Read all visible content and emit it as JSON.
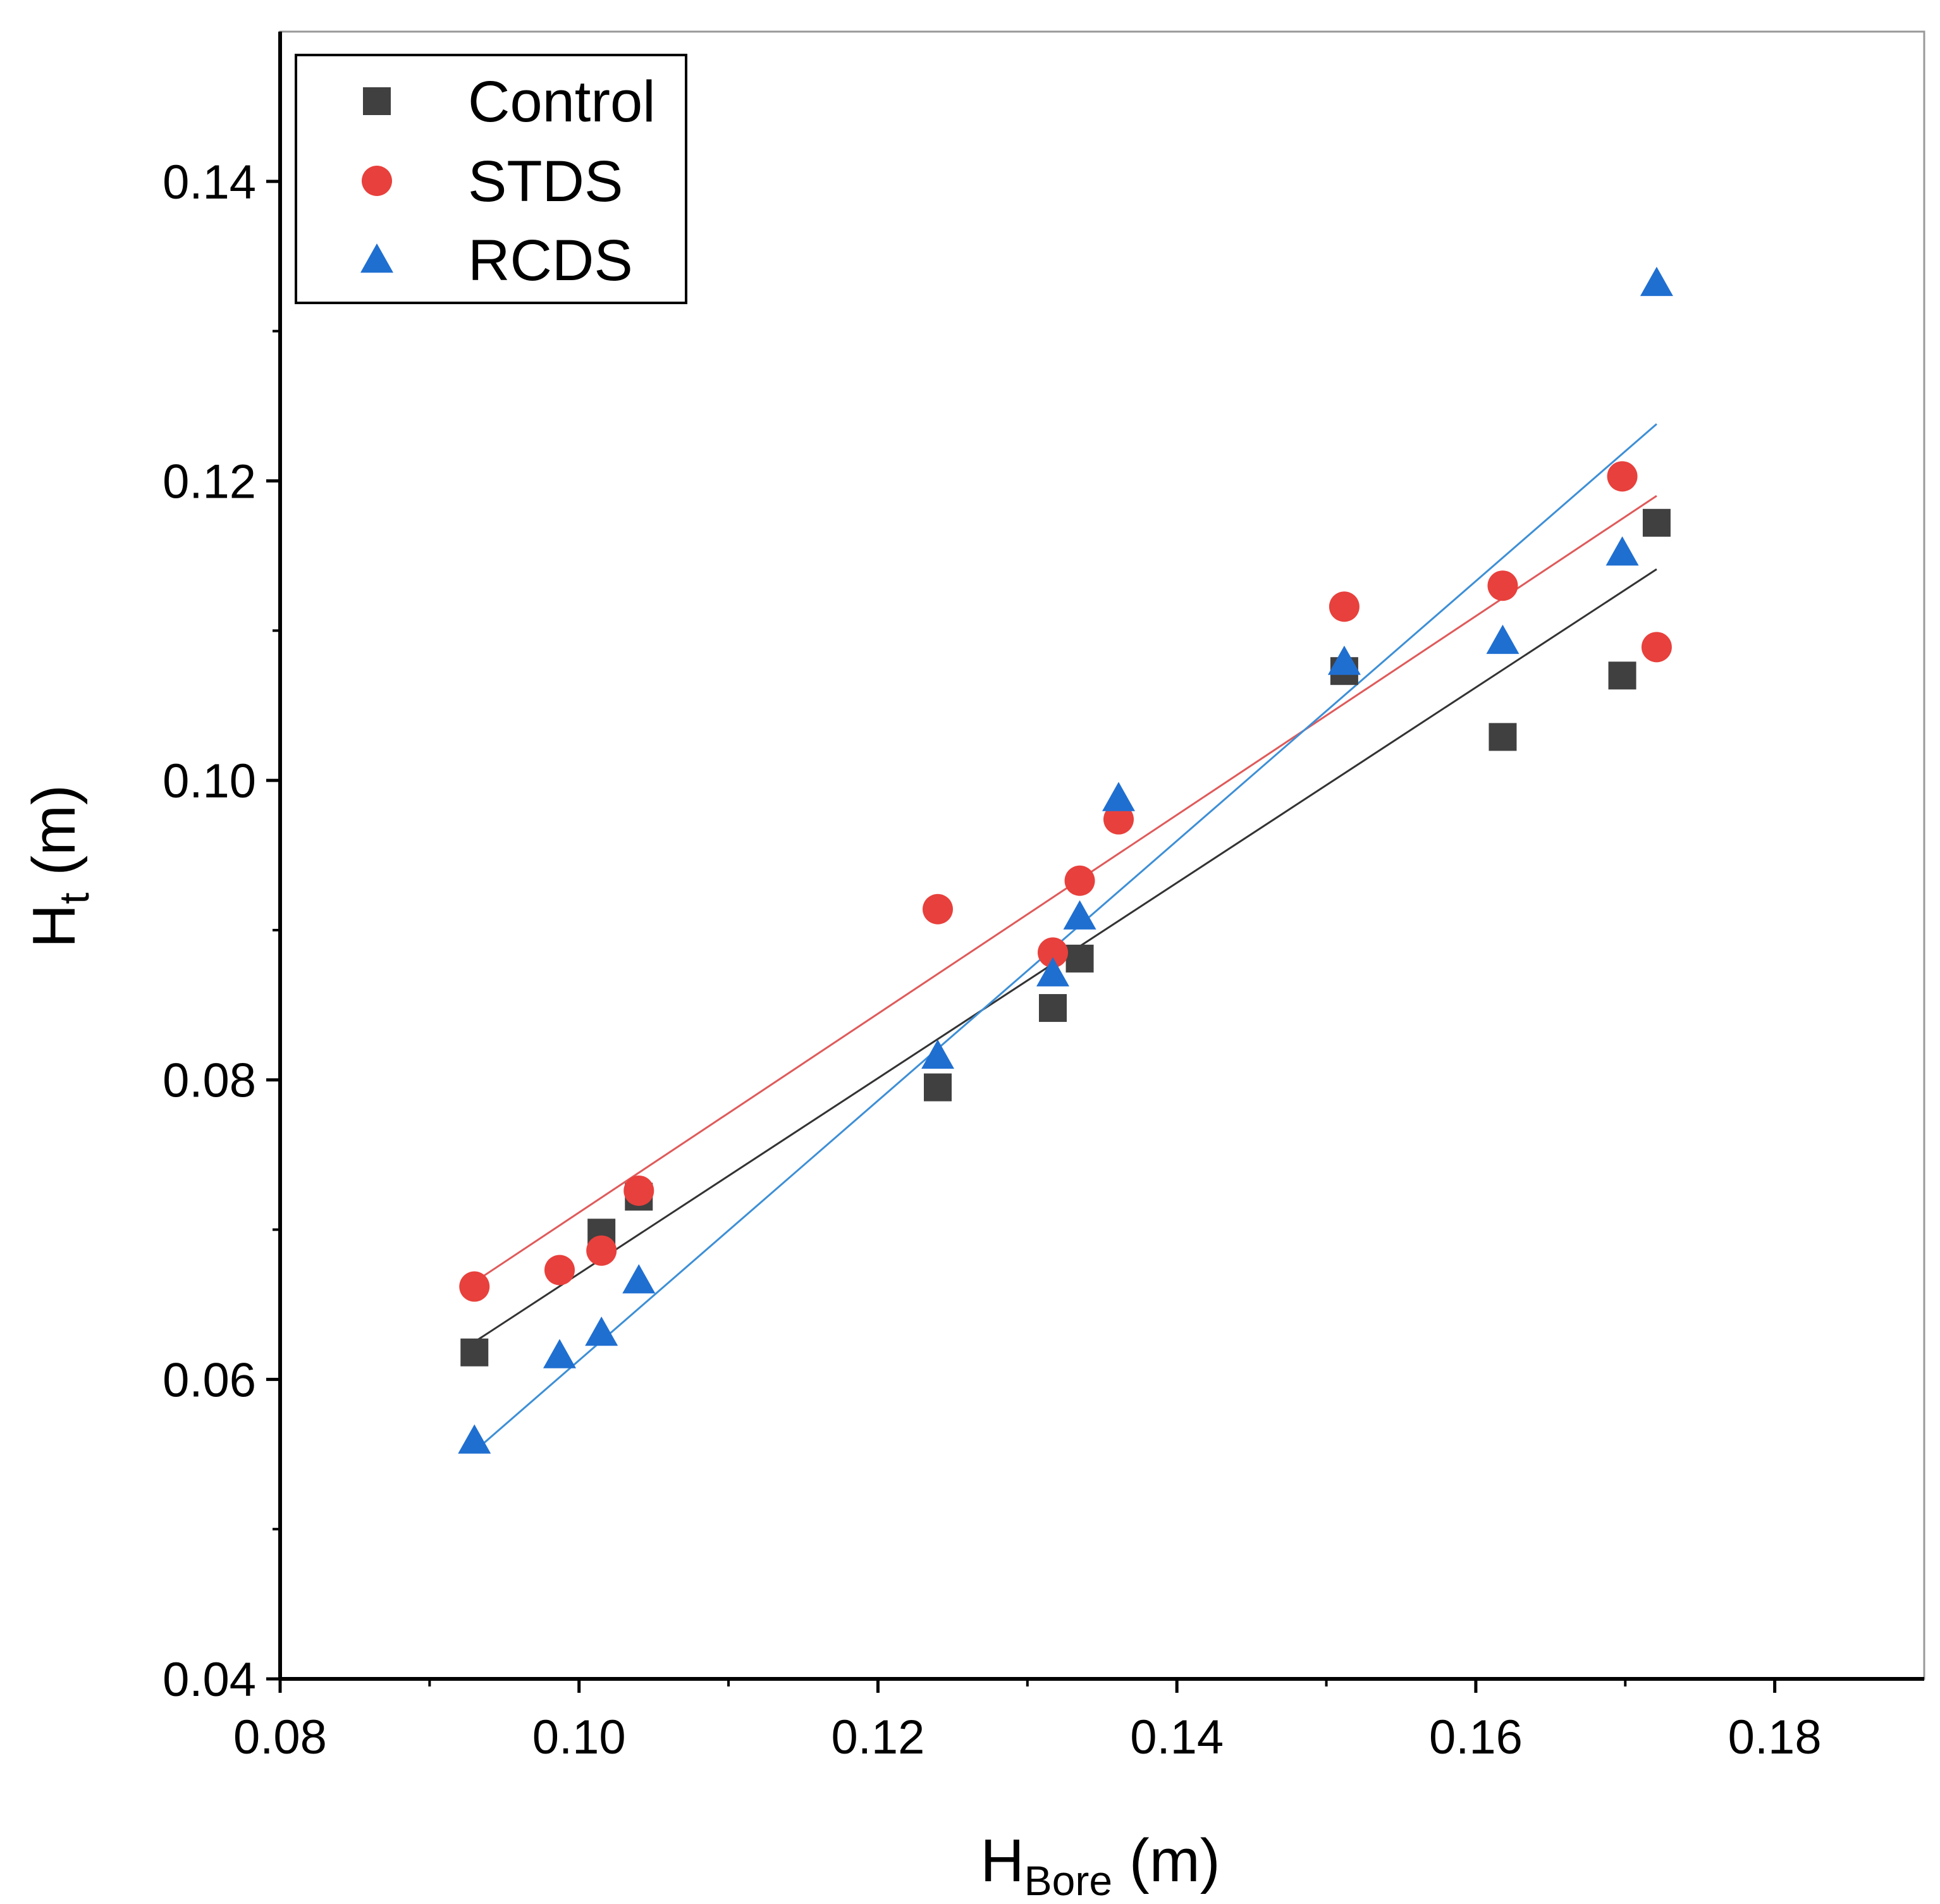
{
  "chart_data": {
    "type": "scatter",
    "x_axis": {
      "label_main": "H",
      "label_sub": "Bore",
      "label_unit": " (m)",
      "range": [
        0.08,
        0.19
      ],
      "ticks": [
        0.08,
        0.1,
        0.12,
        0.14,
        0.16,
        0.18
      ],
      "tick_labels": [
        "0.08",
        "0.10",
        "0.12",
        "0.14",
        "0.16",
        "0.18"
      ]
    },
    "y_axis": {
      "label_main": "H",
      "label_sub": "t",
      "label_unit": " (m)",
      "range": [
        0.04,
        0.15
      ],
      "ticks": [
        0.04,
        0.06,
        0.08,
        0.1,
        0.12,
        0.14
      ],
      "tick_labels": [
        "0.04",
        "0.06",
        "0.08",
        "0.10",
        "0.12",
        "0.14"
      ]
    },
    "legend_position": "top-left",
    "series": [
      {
        "name": "Control",
        "marker": "square",
        "color": "#404040",
        "line_color": "#333333",
        "points": [
          [
            0.093,
            0.0618
          ],
          [
            0.1015,
            0.0698
          ],
          [
            0.104,
            0.0722
          ],
          [
            0.124,
            0.0795
          ],
          [
            0.1317,
            0.0848
          ],
          [
            0.1335,
            0.0881
          ],
          [
            0.1512,
            0.1073
          ],
          [
            0.1618,
            0.1029
          ],
          [
            0.1698,
            0.107
          ],
          [
            0.1721,
            0.1172
          ]
        ],
        "fit": [
          [
            0.093,
            0.0625
          ],
          [
            0.1721,
            0.1141
          ]
        ]
      },
      {
        "name": "STDS",
        "marker": "circle",
        "color": "#e8403c",
        "line_color": "#e05a5a",
        "points": [
          [
            0.093,
            0.0662
          ],
          [
            0.0987,
            0.0673
          ],
          [
            0.1015,
            0.0686
          ],
          [
            0.104,
            0.0726
          ],
          [
            0.124,
            0.0914
          ],
          [
            0.1317,
            0.0885
          ],
          [
            0.1335,
            0.0933
          ],
          [
            0.1361,
            0.0974
          ],
          [
            0.1512,
            0.1116
          ],
          [
            0.1618,
            0.113
          ],
          [
            0.1698,
            0.1203
          ],
          [
            0.1721,
            0.1089
          ]
        ],
        "fit": [
          [
            0.093,
            0.0665
          ],
          [
            0.1721,
            0.119
          ]
        ]
      },
      {
        "name": "RCDS",
        "marker": "triangle",
        "color": "#1f6fd1",
        "line_color": "#3d8fd6",
        "points": [
          [
            0.093,
            0.0559
          ],
          [
            0.0987,
            0.0616
          ],
          [
            0.1015,
            0.0631
          ],
          [
            0.104,
            0.0666
          ],
          [
            0.124,
            0.0816
          ],
          [
            0.1317,
            0.0871
          ],
          [
            0.1335,
            0.0909
          ],
          [
            0.1361,
            0.0988
          ],
          [
            0.1512,
            0.1079
          ],
          [
            0.1618,
            0.1093
          ],
          [
            0.1698,
            0.1152
          ],
          [
            0.1721,
            0.1332
          ]
        ],
        "fit": [
          [
            0.093,
            0.0552
          ],
          [
            0.1721,
            0.1238
          ]
        ]
      }
    ]
  }
}
